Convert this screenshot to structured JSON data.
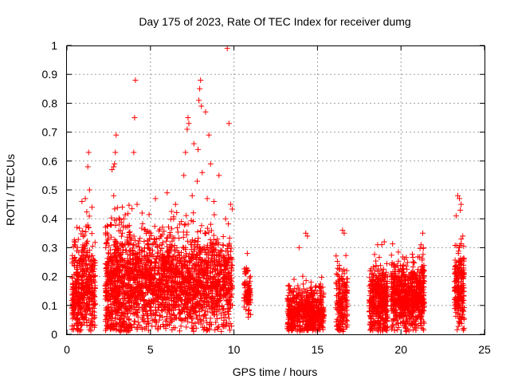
{
  "chart_data": {
    "type": "scatter",
    "title": "Day 175 of 2023, Rate Of TEC Index for receiver dumg",
    "xlabel": "GPS time / hours",
    "ylabel": "ROTI / TECUs",
    "xlim": [
      0,
      25
    ],
    "ylim": [
      0,
      1
    ],
    "xticks": [
      0,
      5,
      10,
      15,
      20,
      25
    ],
    "yticks": [
      0,
      0.1,
      0.2,
      0.3,
      0.4,
      0.5,
      0.6,
      0.7,
      0.8,
      0.9,
      1
    ],
    "xtick_labels": [
      "0",
      "5",
      "10",
      "15",
      "20",
      "25"
    ],
    "ytick_labels": [
      "0",
      "0.1",
      "0.2",
      "0.3",
      "0.4",
      "0.5",
      "0.6",
      "0.7",
      "0.8",
      "0.9",
      "1"
    ],
    "grid": true,
    "marker": "plus",
    "color": "#ff0000",
    "clusters": [
      {
        "x_range": [
          0.3,
          1.0
        ],
        "y_mean": 0.12,
        "y_spread": 0.1,
        "count": 260
      },
      {
        "x_range": [
          1.0,
          1.7
        ],
        "y_mean": 0.14,
        "y_spread": 0.1,
        "count": 220
      },
      {
        "x_range": [
          2.3,
          3.8
        ],
        "y_mean": 0.13,
        "y_spread": 0.12,
        "count": 600
      },
      {
        "x_range": [
          3.8,
          9.9
        ],
        "y_mean": 0.15,
        "y_spread": 0.1,
        "count": 1800
      },
      {
        "x_range": [
          10.6,
          11.0
        ],
        "y_mean": 0.13,
        "y_spread": 0.05,
        "count": 90
      },
      {
        "x_range": [
          13.2,
          15.4
        ],
        "y_mean": 0.06,
        "y_spread": 0.05,
        "count": 600
      },
      {
        "x_range": [
          16.1,
          16.8
        ],
        "y_mean": 0.08,
        "y_spread": 0.07,
        "count": 180
      },
      {
        "x_range": [
          18.1,
          19.2
        ],
        "y_mean": 0.09,
        "y_spread": 0.07,
        "count": 420
      },
      {
        "x_range": [
          19.4,
          21.4
        ],
        "y_mean": 0.11,
        "y_spread": 0.07,
        "count": 750
      },
      {
        "x_range": [
          23.2,
          23.8
        ],
        "y_mean": 0.13,
        "y_spread": 0.08,
        "count": 200
      }
    ],
    "outliers": [
      {
        "x": 0.6,
        "y": 0.37
      },
      {
        "x": 0.9,
        "y": 0.46
      },
      {
        "x": 1.1,
        "y": 0.47
      },
      {
        "x": 1.25,
        "y": 0.58
      },
      {
        "x": 1.3,
        "y": 0.63
      },
      {
        "x": 1.35,
        "y": 0.5
      },
      {
        "x": 1.5,
        "y": 0.44
      },
      {
        "x": 2.6,
        "y": 0.38
      },
      {
        "x": 2.7,
        "y": 0.57
      },
      {
        "x": 2.8,
        "y": 0.58
      },
      {
        "x": 2.85,
        "y": 0.59
      },
      {
        "x": 2.9,
        "y": 0.63
      },
      {
        "x": 2.95,
        "y": 0.69
      },
      {
        "x": 2.8,
        "y": 0.48
      },
      {
        "x": 3.4,
        "y": 0.4
      },
      {
        "x": 4.0,
        "y": 0.63
      },
      {
        "x": 4.05,
        "y": 0.75
      },
      {
        "x": 4.1,
        "y": 0.88
      },
      {
        "x": 4.2,
        "y": 0.45
      },
      {
        "x": 4.5,
        "y": 0.42
      },
      {
        "x": 5.3,
        "y": 0.47
      },
      {
        "x": 6.0,
        "y": 0.49
      },
      {
        "x": 6.5,
        "y": 0.45
      },
      {
        "x": 7.0,
        "y": 0.55
      },
      {
        "x": 7.1,
        "y": 0.63
      },
      {
        "x": 7.2,
        "y": 0.71
      },
      {
        "x": 7.25,
        "y": 0.75
      },
      {
        "x": 7.3,
        "y": 0.73
      },
      {
        "x": 7.5,
        "y": 0.48
      },
      {
        "x": 7.6,
        "y": 0.66
      },
      {
        "x": 7.8,
        "y": 0.53
      },
      {
        "x": 7.85,
        "y": 0.64
      },
      {
        "x": 7.9,
        "y": 0.81
      },
      {
        "x": 7.95,
        "y": 0.85
      },
      {
        "x": 8.0,
        "y": 0.88
      },
      {
        "x": 8.05,
        "y": 0.79
      },
      {
        "x": 8.1,
        "y": 0.56
      },
      {
        "x": 8.3,
        "y": 0.77
      },
      {
        "x": 8.5,
        "y": 0.69
      },
      {
        "x": 8.6,
        "y": 0.59
      },
      {
        "x": 8.4,
        "y": 0.47
      },
      {
        "x": 8.8,
        "y": 0.46
      },
      {
        "x": 9.1,
        "y": 0.55
      },
      {
        "x": 9.6,
        "y": 0.99
      },
      {
        "x": 9.7,
        "y": 0.73
      },
      {
        "x": 9.8,
        "y": 0.45
      },
      {
        "x": 10.8,
        "y": 0.28
      },
      {
        "x": 14.3,
        "y": 0.35
      },
      {
        "x": 14.4,
        "y": 0.34
      },
      {
        "x": 13.9,
        "y": 0.3
      },
      {
        "x": 15.2,
        "y": 0.16
      },
      {
        "x": 16.5,
        "y": 0.36
      },
      {
        "x": 16.6,
        "y": 0.35
      },
      {
        "x": 18.6,
        "y": 0.31
      },
      {
        "x": 19.0,
        "y": 0.32
      },
      {
        "x": 20.2,
        "y": 0.26
      },
      {
        "x": 21.3,
        "y": 0.35
      },
      {
        "x": 21.2,
        "y": 0.31
      },
      {
        "x": 23.4,
        "y": 0.48
      },
      {
        "x": 23.5,
        "y": 0.47
      },
      {
        "x": 23.6,
        "y": 0.45
      },
      {
        "x": 23.55,
        "y": 0.43
      },
      {
        "x": 23.3,
        "y": 0.41
      },
      {
        "x": 23.7,
        "y": 0.34
      },
      {
        "x": 23.5,
        "y": 0.3
      }
    ]
  }
}
